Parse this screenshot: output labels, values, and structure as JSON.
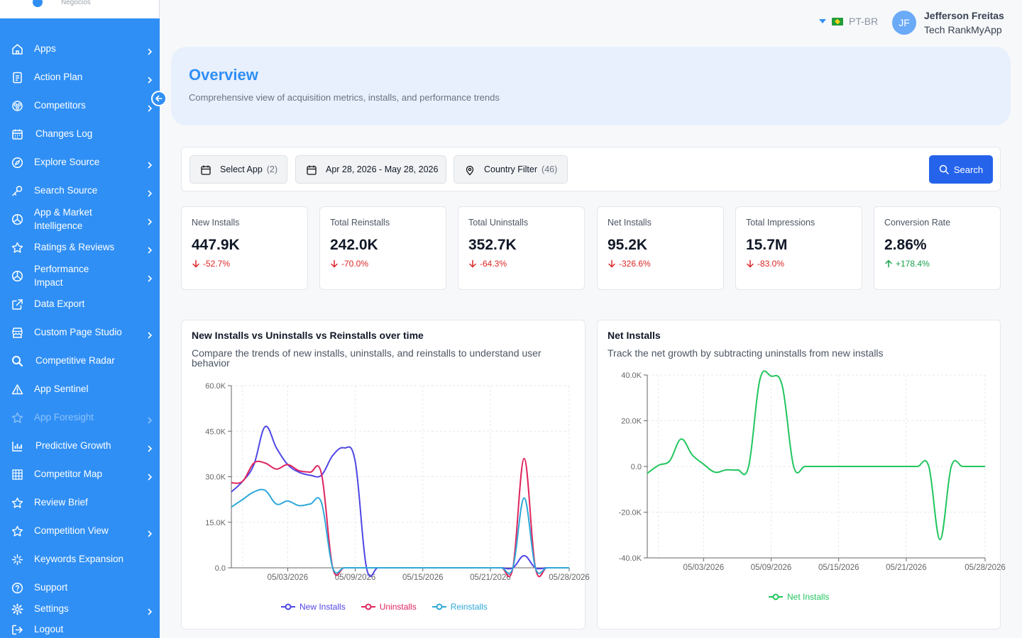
{
  "brand": {
    "subtitle": "Negócios"
  },
  "sidebar": {
    "items": [
      {
        "label": "Apps",
        "icon": "home-icon",
        "chevron": true
      },
      {
        "label": "Action Plan",
        "icon": "document-icon",
        "chevron": true
      },
      {
        "label": "Competitors",
        "icon": "users-icon",
        "chevron": true
      },
      {
        "label": "Changes Log",
        "icon": "calendar-icon",
        "chevron": false
      },
      {
        "label": "Explore Source",
        "icon": "compass-icon",
        "chevron": true
      },
      {
        "label": "Search Source",
        "icon": "key-icon",
        "chevron": true
      },
      {
        "label": "App & Market Intelligence",
        "icon": "pie-icon",
        "chevron": true
      },
      {
        "label": "Ratings & Reviews",
        "icon": "star-icon",
        "chevron": true
      },
      {
        "label": "Performance Impact",
        "icon": "pie-icon",
        "chevron": true
      },
      {
        "label": "Data Export",
        "icon": "export-icon",
        "chevron": false
      },
      {
        "label": "Custom Page Studio",
        "icon": "store-icon",
        "chevron": true
      },
      {
        "label": "Competitive Radar",
        "icon": "search-icon",
        "chevron": false
      },
      {
        "label": "App Sentinel",
        "icon": "warning-icon",
        "chevron": false
      },
      {
        "label": "App Foresight",
        "icon": "star-icon",
        "chevron": true
      },
      {
        "label": "Predictive Growth",
        "icon": "bar-chart-icon",
        "chevron": true
      },
      {
        "label": "Competitor Map",
        "icon": "grid-icon",
        "chevron": true
      },
      {
        "label": "Review Brief",
        "icon": "star-icon",
        "chevron": false
      },
      {
        "label": "Competition View",
        "icon": "star-icon",
        "chevron": true
      },
      {
        "label": "Keywords Expansion",
        "icon": "sparkle-icon",
        "chevron": false
      },
      {
        "label": "Support",
        "icon": "help-icon",
        "chevron": false
      },
      {
        "label": "Settings",
        "icon": "gear-icon",
        "chevron": true
      },
      {
        "label": "Logout",
        "icon": "logout-icon",
        "chevron": false
      }
    ]
  },
  "header": {
    "language": "PT-BR",
    "user_initials": "JF",
    "user_name": "Jefferson Freitas",
    "user_org": "Tech RankMyApp"
  },
  "overview": {
    "title": "Overview",
    "subtitle": "Comprehensive view of acquisition metrics, installs, and performance trends"
  },
  "filters": {
    "select_app_label": "Select App",
    "select_app_count": "(2)",
    "date_range": "Apr 28, 2026 - May 28, 2026",
    "country_label": "Country Filter",
    "country_count": "(46)",
    "search_label": "Search"
  },
  "kpis": [
    {
      "title": "New Installs",
      "value": "447.9K",
      "change": "-52.7%",
      "direction": "down"
    },
    {
      "title": "Total Reinstalls",
      "value": "242.0K",
      "change": "-70.0%",
      "direction": "down"
    },
    {
      "title": "Total Uninstalls",
      "value": "352.7K",
      "change": "-64.3%",
      "direction": "down"
    },
    {
      "title": "Net Installs",
      "value": "95.2K",
      "change": "-326.6%",
      "direction": "down"
    },
    {
      "title": "Total Impressions",
      "value": "15.7M",
      "change": "-83.0%",
      "direction": "down"
    },
    {
      "title": "Conversion Rate",
      "value": "2.86%",
      "change": "+178.4%",
      "direction": "up"
    }
  ],
  "colors": {
    "sidebar": "#2f8ff5",
    "accent": "#2563eb",
    "new_installs": "#4f46e5",
    "uninstalls": "#e0245e",
    "reinstalls": "#2ea8d9",
    "net_installs": "#22c55e",
    "down": "#dc2626",
    "up": "#16a34a"
  },
  "charts": {
    "installs": {
      "title": "New Installs vs Uninstalls vs Reinstalls over time",
      "subtitle": "Compare the trends of new installs, uninstalls, and reinstalls to understand user behavior"
    },
    "net": {
      "title": "Net Installs",
      "subtitle": "Track the net growth by subtracting uninstalls from new installs"
    }
  },
  "chart_data": [
    {
      "type": "line",
      "title": "New Installs vs Uninstalls vs Reinstalls over time",
      "x": [
        "04/28/2026",
        "04/29/2026",
        "04/30/2026",
        "05/01/2026",
        "05/02/2026",
        "05/03/2026",
        "05/04/2026",
        "05/05/2026",
        "05/06/2026",
        "05/07/2026",
        "05/08/2026",
        "05/09/2026",
        "05/10/2026",
        "05/11/2026",
        "05/12/2026",
        "05/13/2026",
        "05/14/2026",
        "05/15/2026",
        "05/16/2026",
        "05/17/2026",
        "05/18/2026",
        "05/19/2026",
        "05/20/2026",
        "05/21/2026",
        "05/22/2026",
        "05/23/2026",
        "05/24/2026",
        "05/25/2026",
        "05/26/2026",
        "05/27/2026",
        "05/28/2026"
      ],
      "x_ticks": [
        "05/03/2026",
        "05/09/2026",
        "05/15/2026",
        "05/21/2026",
        "05/28/2026"
      ],
      "series": [
        {
          "name": "New Installs",
          "values": [
            25000,
            28500,
            34000,
            46500,
            39500,
            34000,
            31500,
            30500,
            30500,
            37000,
            39500,
            35000,
            0,
            0,
            0,
            0,
            0,
            0,
            0,
            0,
            0,
            0,
            0,
            0,
            0,
            0,
            4000,
            0,
            0,
            0,
            0
          ]
        },
        {
          "name": "Uninstalls",
          "values": [
            28000,
            28500,
            34500,
            34500,
            32500,
            34000,
            32000,
            31500,
            31000,
            0,
            0,
            0,
            0,
            0,
            0,
            0,
            0,
            0,
            0,
            0,
            0,
            0,
            0,
            0,
            0,
            0,
            36000,
            0,
            0,
            0,
            0
          ]
        },
        {
          "name": "Reinstalls",
          "values": [
            20000,
            22500,
            25000,
            25500,
            21000,
            22000,
            20500,
            21000,
            21500,
            0,
            0,
            0,
            0,
            0,
            0,
            0,
            0,
            0,
            0,
            0,
            0,
            0,
            0,
            0,
            0,
            0,
            23000,
            0,
            0,
            0,
            0
          ]
        }
      ],
      "ylim": [
        0,
        60000
      ],
      "y_ticks": [
        "0.0",
        "15.0K",
        "30.0K",
        "45.0K",
        "60.0K"
      ],
      "legend": "bottom"
    },
    {
      "type": "line",
      "title": "Net Installs",
      "x": [
        "04/28/2026",
        "04/29/2026",
        "04/30/2026",
        "05/01/2026",
        "05/02/2026",
        "05/03/2026",
        "05/04/2026",
        "05/05/2026",
        "05/06/2026",
        "05/07/2026",
        "05/08/2026",
        "05/09/2026",
        "05/10/2026",
        "05/11/2026",
        "05/12/2026",
        "05/13/2026",
        "05/14/2026",
        "05/15/2026",
        "05/16/2026",
        "05/17/2026",
        "05/18/2026",
        "05/19/2026",
        "05/20/2026",
        "05/21/2026",
        "05/22/2026",
        "05/23/2026",
        "05/24/2026",
        "05/25/2026",
        "05/26/2026",
        "05/27/2026",
        "05/28/2026"
      ],
      "x_ticks": [
        "05/03/2026",
        "05/09/2026",
        "05/15/2026",
        "05/21/2026",
        "05/28/2026"
      ],
      "series": [
        {
          "name": "Net Installs",
          "values": [
            -3000,
            500,
            2500,
            12000,
            5000,
            1000,
            -2500,
            -1500,
            -1500,
            0,
            38000,
            39500,
            35000,
            0,
            0,
            0,
            0,
            0,
            0,
            0,
            0,
            0,
            0,
            0,
            0,
            0,
            -32000,
            0,
            0,
            0,
            0
          ]
        }
      ],
      "ylim": [
        -40000,
        40000
      ],
      "y_ticks": [
        "-40.0K",
        "-20.0K",
        "0.0",
        "20.0K",
        "40.0K"
      ],
      "legend": "bottom"
    }
  ]
}
